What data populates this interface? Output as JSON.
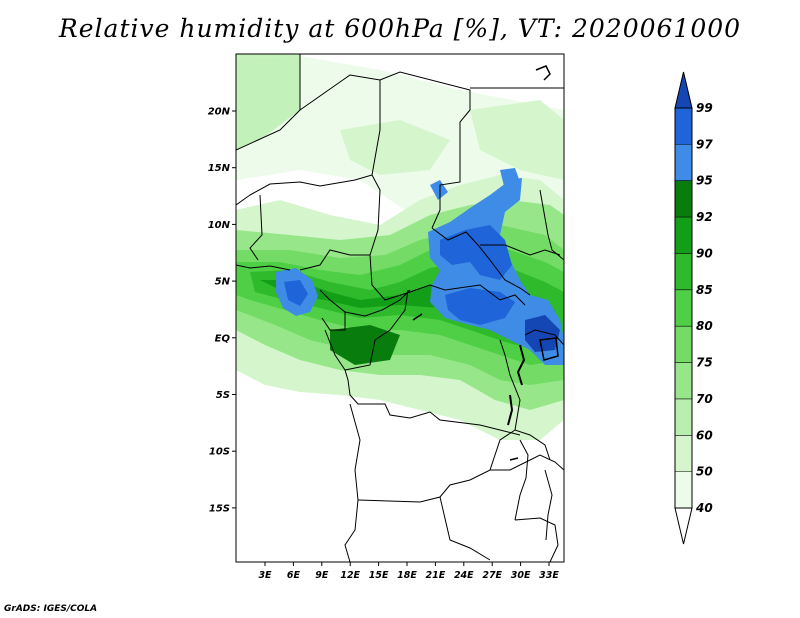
{
  "title": "Relative humidity at 600hPa [%], VT: 2020061000",
  "credit": "GrADS: IGES/COLA",
  "map": {
    "lat_labels": [
      "20N",
      "15N",
      "10N",
      "5N",
      "EQ",
      "5S",
      "10S",
      "15S"
    ],
    "lon_labels": [
      "3E",
      "6E",
      "9E",
      "12E",
      "15E",
      "18E",
      "21E",
      "24E",
      "27E",
      "30E",
      "33E"
    ]
  },
  "colorbar": {
    "levels": [
      "40",
      "50",
      "60",
      "70",
      "75",
      "80",
      "85",
      "90",
      "92",
      "95",
      "97",
      "99"
    ],
    "colors": [
      "#edfbea",
      "#d5f5cd",
      "#b8efae",
      "#98e68a",
      "#74dc66",
      "#4fcf46",
      "#2eba2b",
      "#139e18",
      "#087c0d",
      "#3e8ce6",
      "#1f64d8",
      "#1446b4"
    ]
  },
  "colors": {
    "background": "#ffffff",
    "frame": "#000000",
    "moist_high": "#2a6ae0"
  }
}
